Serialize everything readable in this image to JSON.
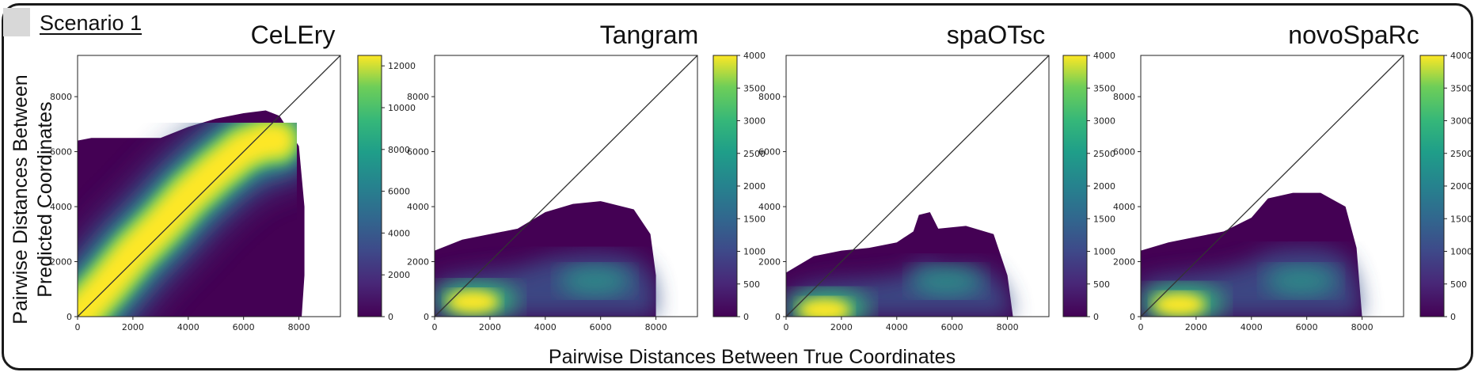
{
  "figure": {
    "scenario_label": "Scenario 1",
    "ylabel_line1": "Pairwise Distances Between",
    "ylabel_line2": "Predicted Coordinates",
    "xlabel": "Pairwise Distances Between True Coordinates"
  },
  "colors": {
    "viridis_low": "#440154",
    "viridis_mid": "#21918c",
    "viridis_high": "#fde725",
    "identity_line": "#333333",
    "frame": "#1a1a1a"
  },
  "chart_data": [
    {
      "type": "heatmap",
      "title": "CeLEry",
      "xlim": [
        0,
        9500
      ],
      "ylim": [
        0,
        9500
      ],
      "xticks": [
        0,
        2000,
        4000,
        6000,
        8000
      ],
      "yticks": [
        0,
        2000,
        4000,
        6000,
        8000
      ],
      "reference_line": "y = x",
      "colorbar": {
        "min": 0,
        "max": 12500,
        "ticks": [
          0,
          2000,
          4000,
          6000,
          8000,
          10000,
          12000
        ]
      },
      "envelope_upper": [
        [
          0,
          6400
        ],
        [
          500,
          6500
        ],
        [
          1000,
          6500
        ],
        [
          2000,
          6500
        ],
        [
          3000,
          6500
        ],
        [
          4000,
          6900
        ],
        [
          5000,
          7200
        ],
        [
          6000,
          7400
        ],
        [
          6800,
          7500
        ],
        [
          7300,
          7300
        ],
        [
          8000,
          6200
        ],
        [
          8200,
          4000
        ],
        [
          8200,
          1500
        ],
        [
          8100,
          0
        ]
      ],
      "ridge": [
        [
          0,
          0
        ],
        [
          1000,
          1100
        ],
        [
          2000,
          2300
        ],
        [
          3000,
          3300
        ],
        [
          4000,
          4400
        ],
        [
          5000,
          5300
        ],
        [
          6000,
          6100
        ],
        [
          6800,
          6400
        ],
        [
          7200,
          6400
        ]
      ]
    },
    {
      "type": "heatmap",
      "title": "Tangram",
      "xlim": [
        0,
        9500
      ],
      "ylim": [
        0,
        9500
      ],
      "xticks": [
        0,
        2000,
        4000,
        6000,
        8000
      ],
      "yticks": [
        0,
        2000,
        4000,
        6000,
        8000
      ],
      "reference_line": "y = x",
      "colorbar": {
        "min": 0,
        "max": 4000,
        "ticks": [
          0,
          500,
          1000,
          1500,
          2000,
          2500,
          3000,
          3500,
          4000
        ]
      },
      "envelope_upper": [
        [
          0,
          2400
        ],
        [
          1000,
          2800
        ],
        [
          2000,
          3000
        ],
        [
          3000,
          3200
        ],
        [
          4000,
          3800
        ],
        [
          5000,
          4100
        ],
        [
          6000,
          4200
        ],
        [
          7200,
          3900
        ],
        [
          7800,
          3000
        ],
        [
          8000,
          1500
        ],
        [
          8000,
          0
        ]
      ],
      "hot_spot": [
        [
          1000,
          500
        ],
        [
          2000,
          700
        ]
      ]
    },
    {
      "type": "heatmap",
      "title": "spaOTsc",
      "xlim": [
        0,
        9500
      ],
      "ylim": [
        0,
        9500
      ],
      "xticks": [
        0,
        2000,
        4000,
        6000,
        8000
      ],
      "yticks": [
        0,
        2000,
        4000,
        6000,
        8000
      ],
      "reference_line": "y = x",
      "colorbar": {
        "min": 0,
        "max": 4000,
        "ticks": [
          0,
          500,
          1000,
          1500,
          2000,
          2500,
          3000,
          3500,
          4000
        ]
      },
      "envelope_upper": [
        [
          0,
          1600
        ],
        [
          1000,
          2200
        ],
        [
          2000,
          2400
        ],
        [
          3000,
          2500
        ],
        [
          4000,
          2700
        ],
        [
          4600,
          3100
        ],
        [
          4800,
          3700
        ],
        [
          5200,
          3800
        ],
        [
          5500,
          3200
        ],
        [
          6500,
          3300
        ],
        [
          7500,
          3000
        ],
        [
          8000,
          1500
        ],
        [
          8200,
          0
        ]
      ],
      "hot_spot": [
        [
          1000,
          200
        ],
        [
          2000,
          400
        ]
      ]
    },
    {
      "type": "heatmap",
      "title": "novoSpaRc",
      "xlim": [
        0,
        9500
      ],
      "ylim": [
        0,
        9500
      ],
      "xticks": [
        0,
        2000,
        4000,
        6000,
        8000
      ],
      "yticks": [
        0,
        2000,
        4000,
        6000,
        8000
      ],
      "reference_line": "y = x",
      "colorbar": {
        "min": 0,
        "max": 4000,
        "ticks": [
          0,
          500,
          1000,
          1500,
          2000,
          2500,
          3000,
          3500,
          4000
        ]
      },
      "envelope_upper": [
        [
          0,
          2400
        ],
        [
          1000,
          2700
        ],
        [
          2000,
          2900
        ],
        [
          3000,
          3100
        ],
        [
          4000,
          3600
        ],
        [
          4600,
          4300
        ],
        [
          5500,
          4500
        ],
        [
          6500,
          4500
        ],
        [
          7400,
          4000
        ],
        [
          7800,
          2500
        ],
        [
          8000,
          0
        ]
      ],
      "hot_spot": [
        [
          1000,
          400
        ],
        [
          2000,
          600
        ]
      ]
    }
  ]
}
